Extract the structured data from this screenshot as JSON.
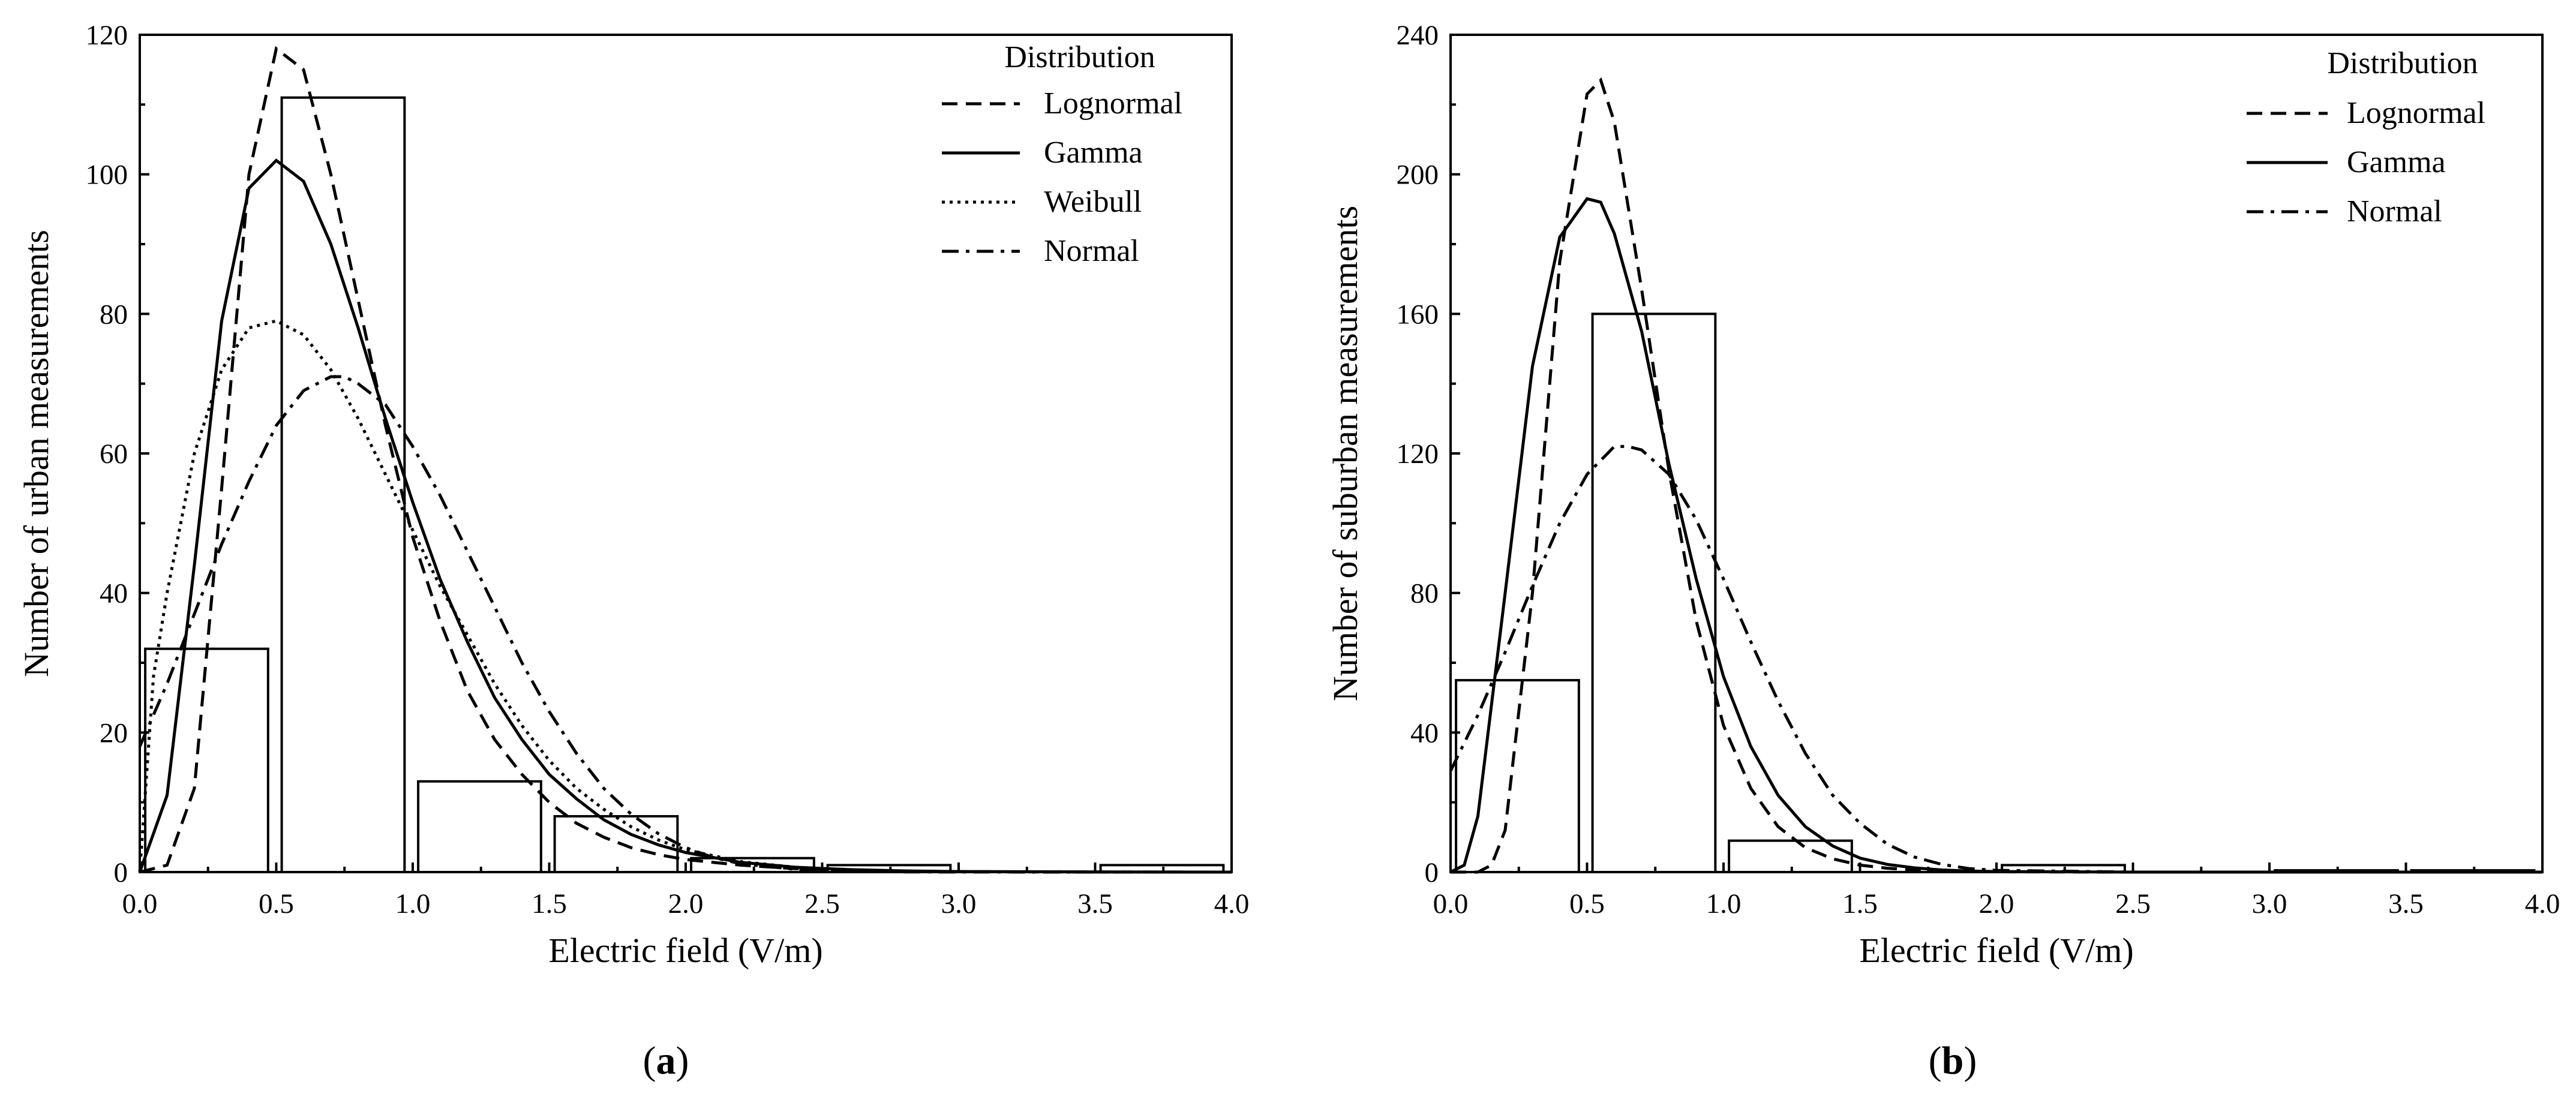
{
  "chart_data": [
    {
      "type": "bar",
      "panel": "a",
      "panel_label_prefix": "(",
      "panel_label_letter": "a",
      "panel_label_suffix": ")",
      "xlabel": "Electric field (V/m)",
      "ylabel": "Number of urban measurements",
      "xlim": [
        0,
        4.0
      ],
      "ylim": [
        0,
        120
      ],
      "xticks": [
        "0.0",
        "0.5",
        "1.0",
        "1.5",
        "2.0",
        "2.5",
        "3.0",
        "3.5",
        "4.0"
      ],
      "yticks": [
        "0",
        "20",
        "40",
        "60",
        "80",
        "100",
        "120"
      ],
      "grid": false,
      "legend_title": "Distribution",
      "legend_position": "top-right",
      "bars": [
        {
          "x0": 0.02,
          "x1": 0.47,
          "value": 32
        },
        {
          "x0": 0.52,
          "x1": 0.97,
          "value": 111
        },
        {
          "x0": 1.02,
          "x1": 1.47,
          "value": 13
        },
        {
          "x0": 1.52,
          "x1": 1.97,
          "value": 8
        },
        {
          "x0": 2.02,
          "x1": 2.47,
          "value": 2
        },
        {
          "x0": 2.52,
          "x1": 2.97,
          "value": 1
        },
        {
          "x0": 3.02,
          "x1": 3.47,
          "value": 0
        },
        {
          "x0": 3.52,
          "x1": 3.97,
          "value": 1
        }
      ],
      "series": [
        {
          "name": "Lognormal",
          "style": "dashed",
          "x": [
            0.0,
            0.1,
            0.2,
            0.3,
            0.4,
            0.5,
            0.6,
            0.7,
            0.8,
            0.9,
            1.0,
            1.1,
            1.2,
            1.3,
            1.4,
            1.5,
            1.6,
            1.7,
            1.8,
            1.9,
            2.0,
            2.2,
            2.4,
            2.6,
            2.8,
            3.0,
            3.5,
            4.0
          ],
          "y": [
            0,
            1,
            12,
            55,
            100,
            118,
            115,
            100,
            82,
            64,
            48,
            36,
            26,
            19,
            14,
            10,
            7,
            5,
            3.5,
            2.5,
            1.8,
            1,
            0.5,
            0.25,
            0.12,
            0.06,
            0.02,
            0
          ]
        },
        {
          "name": "Gamma",
          "style": "solid",
          "x": [
            0.0,
            0.1,
            0.2,
            0.3,
            0.4,
            0.5,
            0.6,
            0.7,
            0.8,
            0.9,
            1.0,
            1.1,
            1.2,
            1.3,
            1.4,
            1.5,
            1.6,
            1.7,
            1.8,
            1.9,
            2.0,
            2.2,
            2.4,
            2.6,
            2.8,
            3.0,
            3.5,
            4.0
          ],
          "y": [
            0,
            11,
            44,
            79,
            98,
            102,
            99,
            90,
            78,
            65,
            53,
            42,
            33,
            25,
            19,
            14,
            10.5,
            7.5,
            5.4,
            3.9,
            2.8,
            1.4,
            0.7,
            0.35,
            0.17,
            0.08,
            0.02,
            0
          ]
        },
        {
          "name": "Weibull",
          "style": "dotted",
          "x": [
            0.0,
            0.05,
            0.1,
            0.2,
            0.3,
            0.4,
            0.5,
            0.6,
            0.7,
            0.8,
            0.9,
            1.0,
            1.1,
            1.2,
            1.3,
            1.4,
            1.5,
            1.6,
            1.7,
            1.8,
            1.9,
            2.0,
            2.2,
            2.4,
            2.6,
            2.8,
            3.0,
            3.5,
            4.0
          ],
          "y": [
            0,
            28,
            40,
            60,
            72,
            78,
            79,
            77,
            72,
            65,
            57,
            49,
            41,
            34,
            27,
            21,
            16,
            12,
            9,
            6.5,
            4.6,
            3.2,
            1.5,
            0.7,
            0.3,
            0.12,
            0.05,
            0.01,
            0
          ]
        },
        {
          "name": "Normal",
          "style": "dashdot",
          "x": [
            0.0,
            0.1,
            0.2,
            0.3,
            0.4,
            0.5,
            0.6,
            0.7,
            0.75,
            0.8,
            0.9,
            1.0,
            1.1,
            1.2,
            1.3,
            1.4,
            1.5,
            1.6,
            1.7,
            1.8,
            1.9,
            2.0,
            2.1,
            2.2,
            2.4,
            2.6,
            2.8,
            3.0,
            3.5,
            4.0
          ],
          "y": [
            18,
            27,
            37,
            47,
            56,
            64,
            69,
            71,
            71,
            70,
            67,
            61,
            54,
            46,
            38,
            30,
            23,
            17,
            12,
            8.3,
            5.5,
            3.5,
            2.1,
            1.2,
            0.4,
            0.1,
            0.03,
            0.01,
            0,
            0
          ]
        }
      ]
    },
    {
      "type": "bar",
      "panel": "b",
      "panel_label_prefix": "(",
      "panel_label_letter": "b",
      "panel_label_suffix": ")",
      "xlabel": "Electric field (V/m)",
      "ylabel": "Number of suburban measurements",
      "xlim": [
        0,
        4.0
      ],
      "ylim": [
        0,
        240
      ],
      "xticks": [
        "0.0",
        "0.5",
        "1.0",
        "1.5",
        "2.0",
        "2.5",
        "3.0",
        "3.5",
        "4.0"
      ],
      "yticks": [
        "0",
        "40",
        "80",
        "120",
        "160",
        "200",
        "240"
      ],
      "grid": false,
      "legend_title": "Distribution",
      "legend_position": "top-right",
      "bars": [
        {
          "x0": 0.02,
          "x1": 0.47,
          "value": 55
        },
        {
          "x0": 0.52,
          "x1": 0.97,
          "value": 160
        },
        {
          "x0": 1.02,
          "x1": 1.47,
          "value": 9
        },
        {
          "x0": 1.52,
          "x1": 1.97,
          "value": 0
        },
        {
          "x0": 2.02,
          "x1": 2.47,
          "value": 2
        },
        {
          "x0": 2.52,
          "x1": 2.97,
          "value": 0
        },
        {
          "x0": 3.02,
          "x1": 3.47,
          "value": 0.5
        },
        {
          "x0": 3.52,
          "x1": 3.97,
          "value": 0.5
        }
      ],
      "series": [
        {
          "name": "Lognormal",
          "style": "dashed",
          "x": [
            0.0,
            0.1,
            0.15,
            0.2,
            0.3,
            0.4,
            0.5,
            0.55,
            0.6,
            0.7,
            0.8,
            0.9,
            1.0,
            1.1,
            1.2,
            1.3,
            1.4,
            1.5,
            1.6,
            1.7,
            1.8,
            1.9,
            2.0,
            2.5,
            3.0,
            4.0
          ],
          "y": [
            0,
            0,
            2,
            12,
            80,
            175,
            223,
            227,
            215,
            167,
            115,
            72,
            42,
            24,
            13,
            7,
            3.8,
            2,
            1.1,
            0.6,
            0.3,
            0.15,
            0.08,
            0,
            0,
            0
          ]
        },
        {
          "name": "Gamma",
          "style": "solid",
          "x": [
            0.0,
            0.05,
            0.1,
            0.2,
            0.3,
            0.4,
            0.5,
            0.55,
            0.6,
            0.7,
            0.8,
            0.9,
            1.0,
            1.1,
            1.2,
            1.3,
            1.4,
            1.5,
            1.6,
            1.7,
            1.8,
            1.9,
            2.0,
            2.5,
            3.0,
            4.0
          ],
          "y": [
            0,
            2,
            16,
            80,
            145,
            182,
            193,
            192,
            183,
            155,
            117,
            84,
            56,
            36,
            22,
            13,
            7.5,
            4,
            2.2,
            1.2,
            0.6,
            0.3,
            0.15,
            0,
            0,
            0
          ]
        },
        {
          "name": "Normal",
          "style": "dashdot",
          "x": [
            0.0,
            0.1,
            0.2,
            0.3,
            0.4,
            0.5,
            0.6,
            0.65,
            0.7,
            0.8,
            0.9,
            1.0,
            1.1,
            1.2,
            1.3,
            1.4,
            1.5,
            1.6,
            1.7,
            1.8,
            1.9,
            2.0,
            2.5,
            3.0,
            4.0
          ],
          "y": [
            29,
            45,
            63,
            82,
            100,
            114,
            122,
            122,
            121,
            114,
            101,
            84,
            66,
            49,
            34,
            22,
            14,
            8,
            4.3,
            2.2,
            1,
            0.5,
            0,
            0,
            0
          ]
        }
      ]
    }
  ]
}
